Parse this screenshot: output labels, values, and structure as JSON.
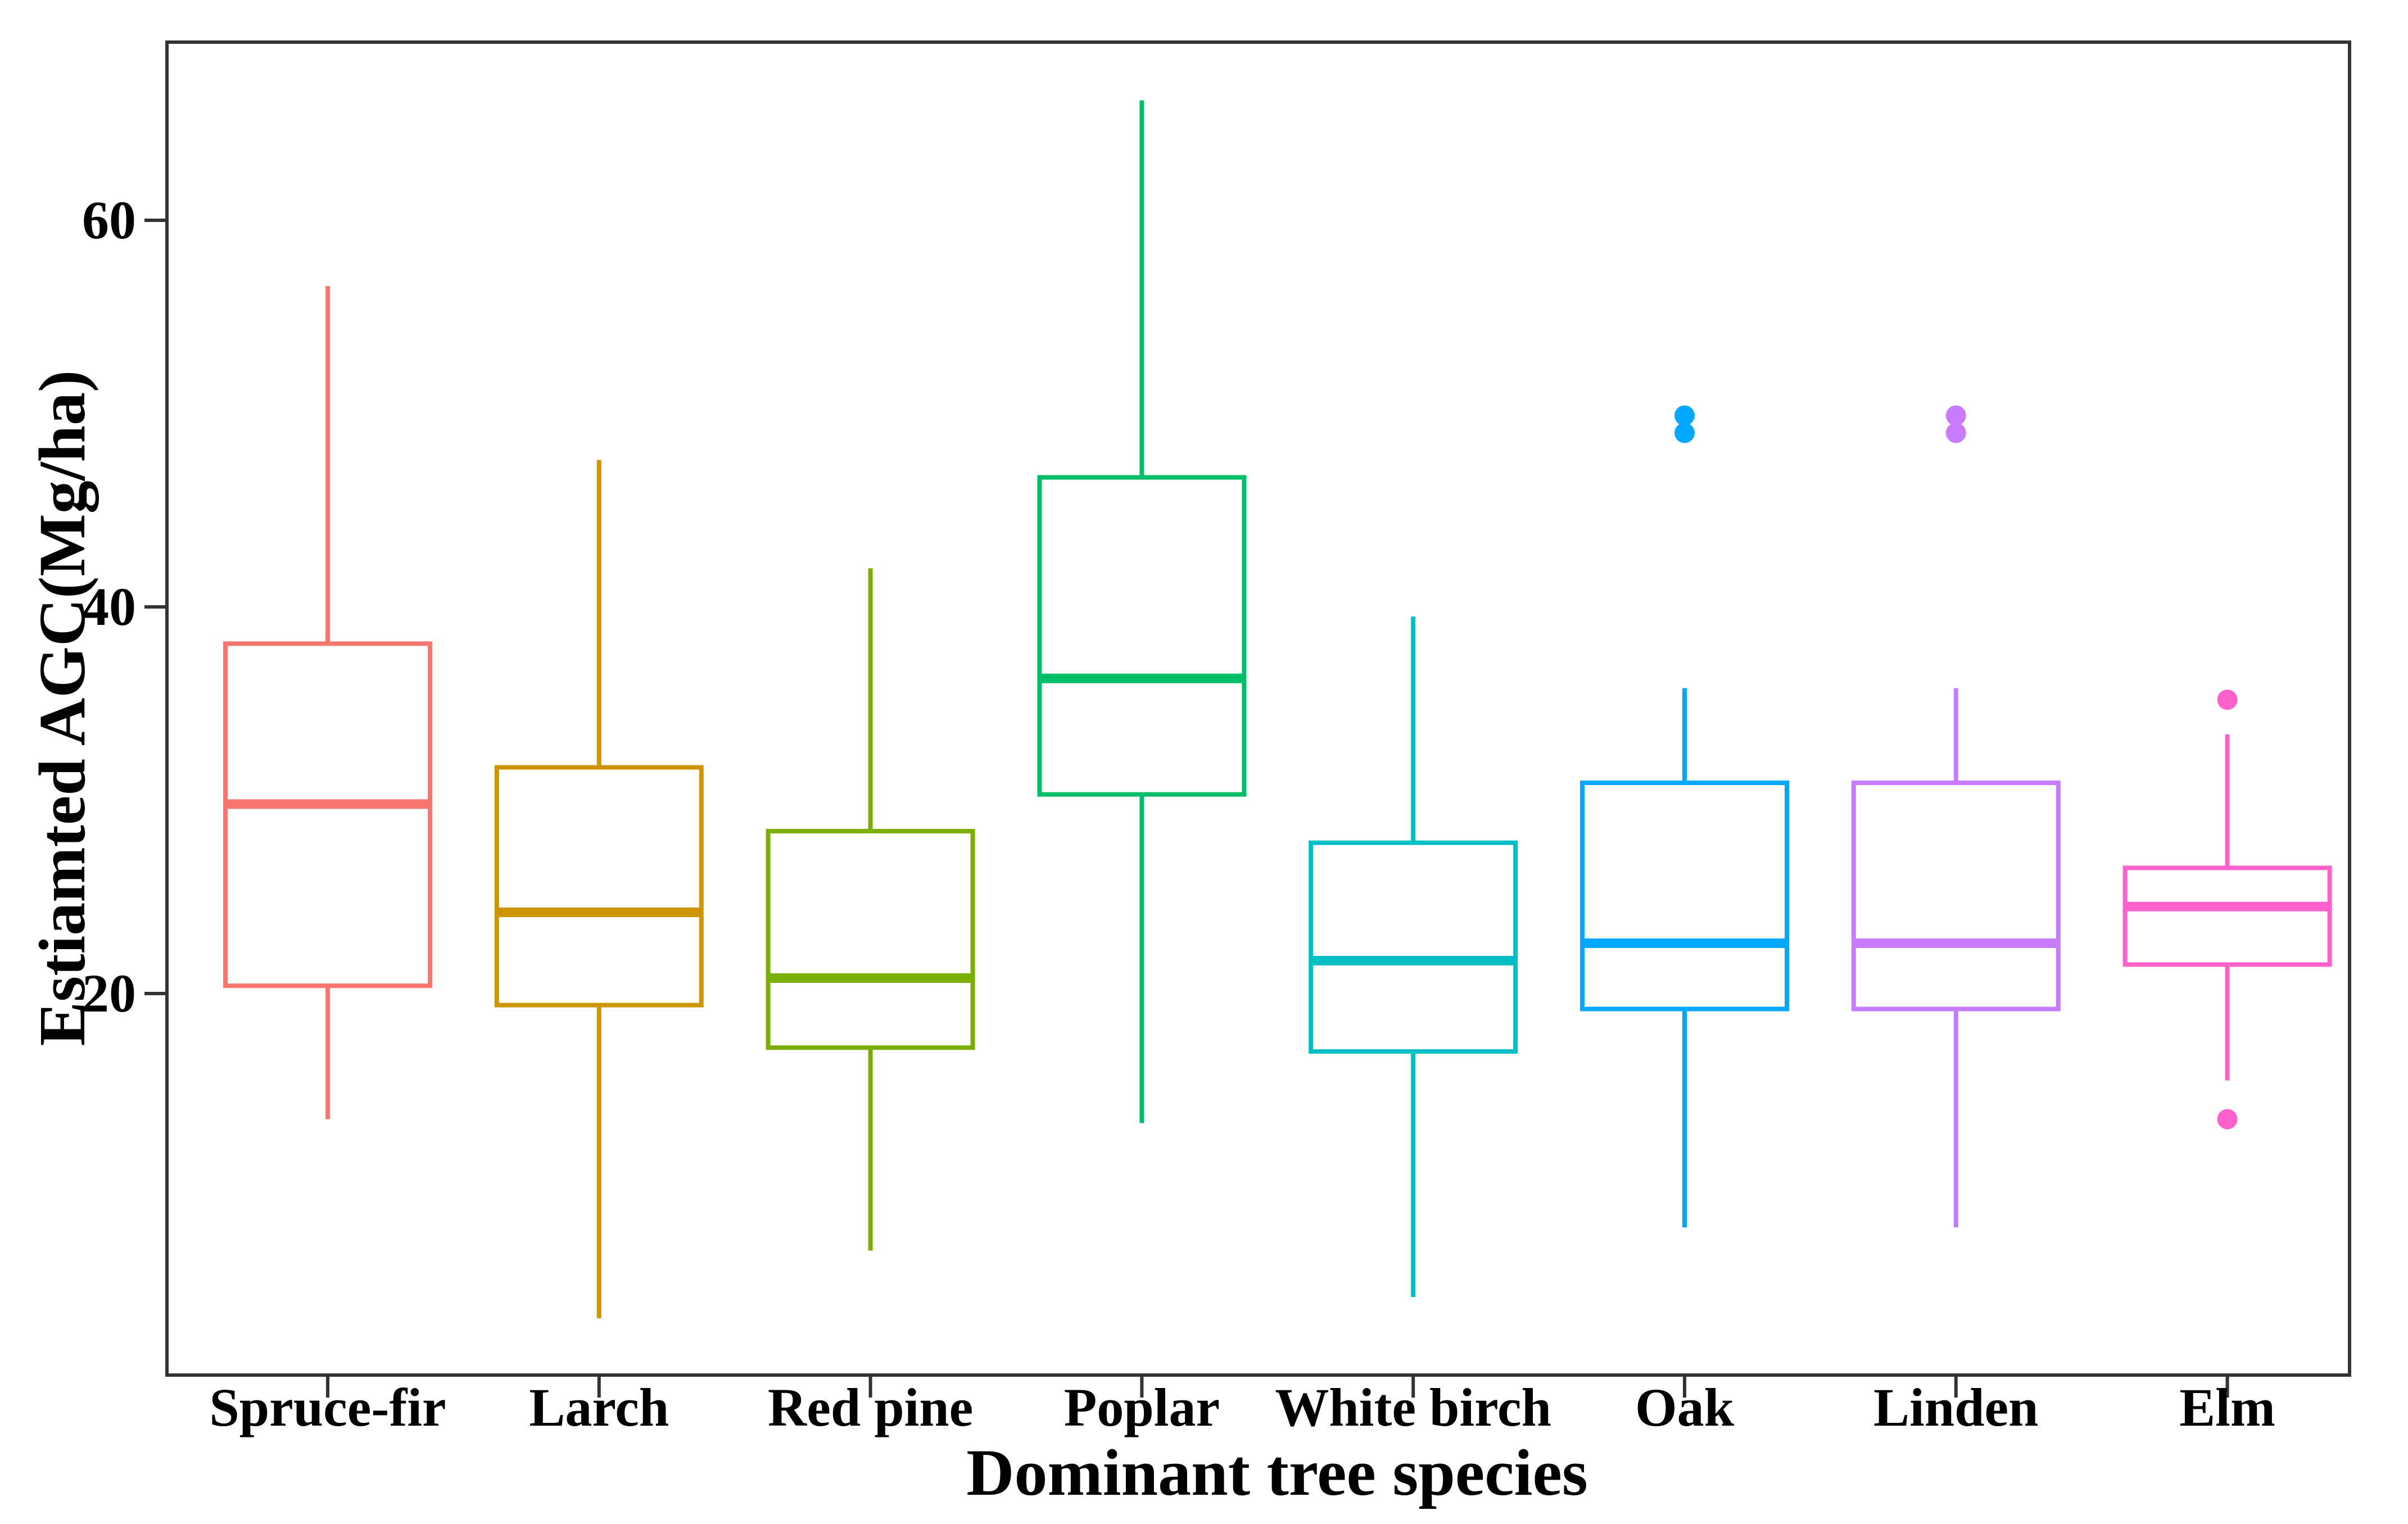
{
  "chart_data": {
    "type": "box",
    "xlabel": "Dominant tree species",
    "ylabel": "Estiamted AGC(Mg/ha)",
    "ylim": [
      0,
      69
    ],
    "yticks": [
      20,
      40,
      60
    ],
    "grid": false,
    "legend": "none",
    "categories": [
      {
        "name": "Spruce-fir",
        "color": "#F8766D",
        "whisker_low": 13.5,
        "q1": 20.4,
        "median": 29.8,
        "q3": 38.1,
        "whisker_high": 56.6,
        "outliers": []
      },
      {
        "name": "Larch",
        "color": "#CD9600",
        "whisker_low": 3.2,
        "q1": 19.4,
        "median": 24.2,
        "q3": 31.7,
        "whisker_high": 47.6,
        "outliers": []
      },
      {
        "name": "Red pine",
        "color": "#7CAE00",
        "whisker_low": 6.7,
        "q1": 17.2,
        "median": 20.8,
        "q3": 28.4,
        "whisker_high": 42.0,
        "outliers": []
      },
      {
        "name": "Poplar",
        "color": "#00BE67",
        "whisker_low": 13.3,
        "q1": 30.3,
        "median": 36.3,
        "q3": 46.7,
        "whisker_high": 66.2,
        "outliers": []
      },
      {
        "name": "White birch",
        "color": "#00BFC4",
        "whisker_low": 4.3,
        "q1": 17.0,
        "median": 21.7,
        "q3": 27.8,
        "whisker_high": 39.5,
        "outliers": []
      },
      {
        "name": "Oak",
        "color": "#00A9FF",
        "whisker_low": 7.9,
        "q1": 19.2,
        "median": 22.6,
        "q3": 30.9,
        "whisker_high": 35.8,
        "outliers": [
          49.9,
          49.0
        ]
      },
      {
        "name": "Linden",
        "color": "#C77CFF",
        "whisker_low": 7.9,
        "q1": 19.2,
        "median": 22.6,
        "q3": 30.9,
        "whisker_high": 35.8,
        "outliers": [
          49.9,
          49.0
        ]
      },
      {
        "name": "Elm",
        "color": "#FF61CC",
        "whisker_low": 15.5,
        "q1": 21.5,
        "median": 24.5,
        "q3": 26.5,
        "whisker_high": 33.4,
        "outliers": [
          35.2,
          13.5
        ]
      }
    ]
  }
}
